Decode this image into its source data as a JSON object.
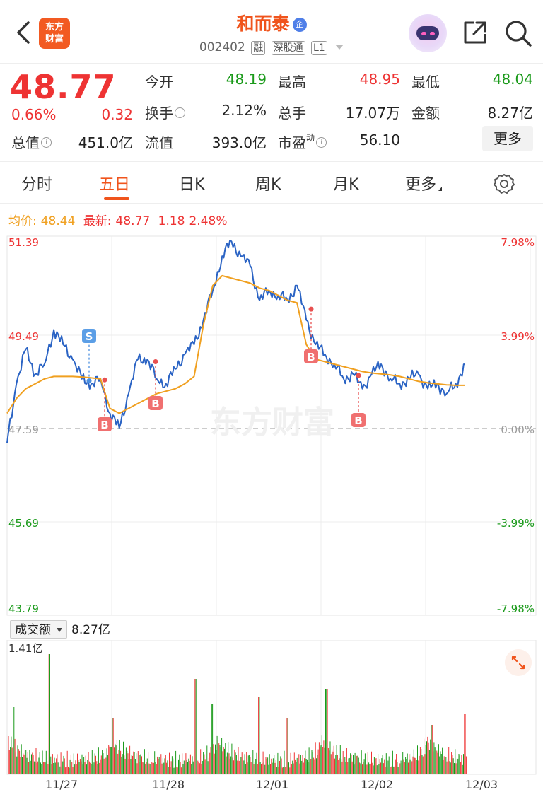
{
  "header": {
    "logo_text_1": "东方",
    "logo_text_2": "财富",
    "stock_name": "和而泰",
    "badge": "企",
    "code": "002402",
    "tags": [
      "融",
      "深股通",
      "L1"
    ]
  },
  "quote": {
    "price": "48.77",
    "change_pct": "0.66%",
    "change": "0.32",
    "fields": [
      {
        "label": "今开",
        "value": "48.19"
      },
      {
        "label": "最高",
        "value": "48.95"
      },
      {
        "label": "最低",
        "value": "48.04"
      },
      {
        "label": "换手",
        "value": "2.12%"
      },
      {
        "label": "总手",
        "value": "17.07万"
      },
      {
        "label": "金额",
        "value": "8.27亿"
      },
      {
        "label": "总值",
        "value": "451.0亿"
      },
      {
        "label": "流值",
        "value": "393.0亿"
      },
      {
        "label": "市盈",
        "label_sup": "动",
        "value": "56.10"
      }
    ],
    "more_button": "更多"
  },
  "tabs": [
    "分时",
    "五日",
    "日K",
    "周K",
    "月K",
    "更多"
  ],
  "active_tab": "五日",
  "avg_line": {
    "avg_label": "均价:",
    "avg_value": "48.44",
    "latest_label": "最新:",
    "latest_value": "48.77",
    "change": "1.18",
    "change_pct": "2.48%"
  },
  "chart_data": {
    "type": "line",
    "title": "",
    "y_ticks": [
      "51.39",
      "49.49",
      "47.59",
      "45.69",
      "43.79"
    ],
    "y_pct_ticks": [
      "7.98%",
      "3.99%",
      "0.00%",
      "-3.99%",
      "-7.98%"
    ],
    "ylim": [
      43.79,
      51.39
    ],
    "base_price": 47.59,
    "days": [
      "11/27",
      "11/28",
      "12/01",
      "12/02",
      "12/03"
    ],
    "series": [
      {
        "name": "price",
        "color": "#2a63c4",
        "values": [
          47.3,
          48.5,
          49.2,
          48.7,
          48.9,
          49.6,
          49.3,
          49.0,
          48.6,
          48.5,
          48.6,
          47.9,
          47.6,
          48.3,
          49.0,
          49.0,
          48.6,
          48.5,
          48.8,
          49.1,
          49.3,
          49.8,
          50.4,
          51.1,
          51.4,
          51.1,
          50.9,
          50.2,
          50.4,
          50.3,
          50.2,
          50.5,
          49.8,
          49.3,
          49.1,
          48.9,
          48.6,
          48.7,
          48.4,
          48.7,
          48.9,
          48.6,
          48.5,
          48.6,
          48.7,
          48.4,
          48.5,
          48.3,
          48.5,
          48.9
        ]
      },
      {
        "name": "avg",
        "color": "#f0a020",
        "values": [
          47.9,
          48.2,
          48.4,
          48.5,
          48.6,
          48.65,
          48.65,
          48.65,
          48.64,
          48.62,
          48.6,
          48.0,
          47.9,
          48.0,
          48.1,
          48.2,
          48.3,
          48.35,
          48.4,
          48.5,
          48.65,
          49.7,
          50.5,
          50.7,
          50.65,
          50.6,
          50.55,
          50.45,
          50.4,
          50.3,
          50.2,
          50.15,
          49.3,
          49.0,
          48.95,
          48.9,
          48.85,
          48.8,
          48.75,
          48.72,
          48.7,
          48.68,
          48.65,
          48.6,
          48.55,
          48.52,
          48.5,
          48.48,
          48.47,
          48.47
        ]
      }
    ],
    "markers": [
      {
        "type": "S",
        "price": 48.56
      },
      {
        "type": "B",
        "price": 48.58
      },
      {
        "type": "B",
        "price": 48.95
      },
      {
        "type": "B",
        "price": 50.02
      },
      {
        "type": "B",
        "price": 48.67
      }
    ],
    "volume": {
      "label": "成交额",
      "total": "8.27亿",
      "max": "1.41亿"
    }
  },
  "watermark": "东方财富"
}
